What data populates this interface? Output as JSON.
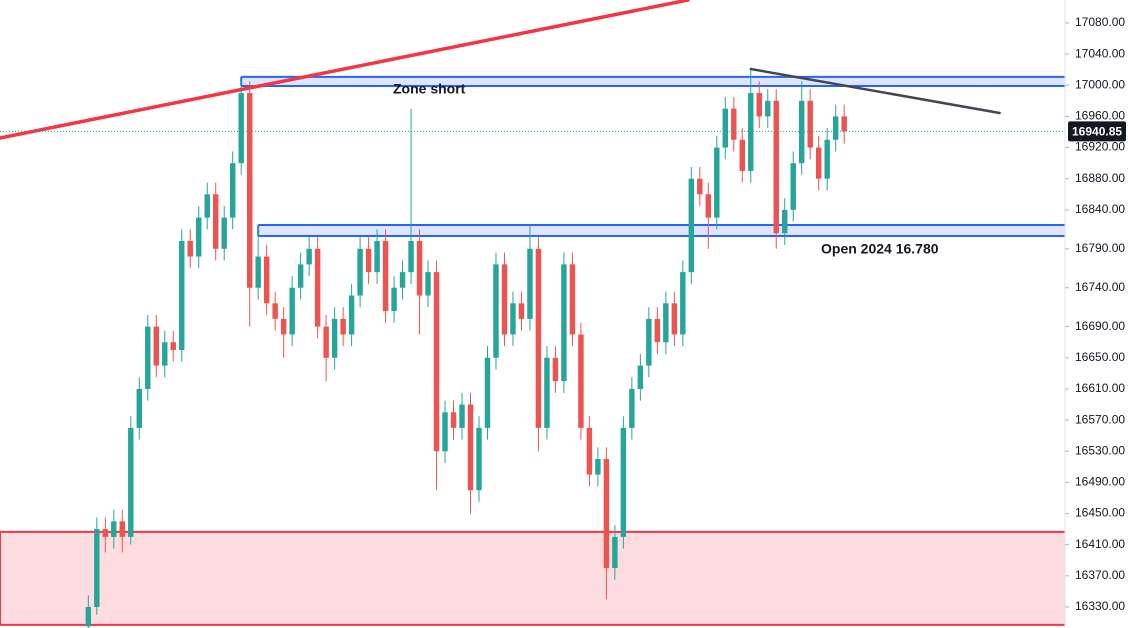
{
  "chart_data": {
    "type": "candlestick",
    "series": [
      {
        "up_color": "#26a69a",
        "down_color": "#ef5350",
        "open": [
          16305,
          16330,
          16430,
          16420,
          16440,
          16420,
          16560,
          16610,
          16690,
          16640,
          16670,
          16660,
          16800,
          16780,
          16830,
          16860,
          16790,
          16830,
          16900,
          16990,
          16740,
          16780,
          16720,
          16700,
          16680,
          16740,
          16770,
          16790,
          16690,
          16650,
          16700,
          16680,
          16730,
          16790,
          16760,
          16800,
          16710,
          16740,
          16760,
          16800,
          16730,
          16760,
          16530,
          16580,
          16560,
          16590,
          16480,
          16560,
          16650,
          16770,
          16680,
          16720,
          16700,
          16790,
          16560,
          16650,
          16620,
          16770,
          16680,
          16560,
          16500,
          16520,
          16380,
          16420,
          16560,
          16610,
          16640,
          16700,
          16670,
          16720,
          16680,
          16760,
          16880,
          16860,
          16830,
          16920,
          16970,
          16930,
          16890,
          16990,
          16960,
          16980,
          16810,
          16840,
          16900,
          16980,
          16920,
          16880,
          16930,
          16960
        ],
        "high": [
          16345,
          16445,
          16445,
          16455,
          16455,
          16575,
          16625,
          16705,
          16705,
          16685,
          16685,
          16815,
          16815,
          16845,
          16875,
          16875,
          16845,
          16915,
          17005,
          17005,
          16820,
          16795,
          16735,
          16715,
          16755,
          16785,
          16805,
          16805,
          16705,
          16715,
          16715,
          16745,
          16805,
          16805,
          16815,
          16815,
          16755,
          16775,
          16970,
          16815,
          16775,
          16775,
          16595,
          16595,
          16605,
          16605,
          16575,
          16665,
          16785,
          16785,
          16735,
          16735,
          16820,
          16805,
          16665,
          16665,
          16785,
          16785,
          16695,
          16575,
          16535,
          16535,
          16435,
          16575,
          16625,
          16655,
          16715,
          16715,
          16735,
          16735,
          16775,
          16895,
          16895,
          16875,
          16935,
          16985,
          16985,
          16945,
          17020,
          17005,
          16995,
          16995,
          16855,
          16915,
          17005,
          16995,
          16935,
          16945,
          16975,
          16975
        ],
        "low": [
          16300,
          16320,
          16400,
          16405,
          16400,
          16410,
          16545,
          16595,
          16625,
          16625,
          16645,
          16645,
          16765,
          16765,
          16815,
          16775,
          16775,
          16815,
          16885,
          16690,
          16725,
          16705,
          16685,
          16650,
          16665,
          16725,
          16755,
          16675,
          16620,
          16635,
          16665,
          16665,
          16715,
          16745,
          16745,
          16695,
          16695,
          16725,
          16745,
          16680,
          16715,
          16480,
          16515,
          16545,
          16545,
          16450,
          16465,
          16545,
          16635,
          16665,
          16665,
          16685,
          16685,
          16530,
          16545,
          16605,
          16605,
          16665,
          16545,
          16485,
          16485,
          16340,
          16365,
          16405,
          16545,
          16595,
          16625,
          16655,
          16655,
          16665,
          16665,
          16745,
          16845,
          16790,
          16815,
          16905,
          16915,
          16875,
          16875,
          16945,
          16945,
          16790,
          16795,
          16825,
          16885,
          16905,
          16865,
          16865,
          16915,
          16925
        ],
        "close": [
          16330,
          16430,
          16420,
          16440,
          16420,
          16560,
          16610,
          16690,
          16640,
          16670,
          16660,
          16800,
          16780,
          16830,
          16860,
          16790,
          16830,
          16900,
          16990,
          16740,
          16780,
          16720,
          16700,
          16680,
          16740,
          16770,
          16790,
          16690,
          16650,
          16700,
          16680,
          16730,
          16790,
          16760,
          16800,
          16710,
          16740,
          16760,
          16800,
          16730,
          16760,
          16530,
          16580,
          16560,
          16590,
          16480,
          16560,
          16650,
          16770,
          16680,
          16720,
          16700,
          16790,
          16560,
          16650,
          16620,
          16770,
          16680,
          16560,
          16500,
          16520,
          16380,
          16420,
          16560,
          16610,
          16640,
          16700,
          16670,
          16720,
          16680,
          16760,
          16880,
          16860,
          16830,
          16920,
          16970,
          16930,
          16890,
          16990,
          16960,
          16980,
          16810,
          16840,
          16900,
          16980,
          16920,
          16880,
          16930,
          16960,
          16940.85
        ]
      }
    ],
    "xlim": [
      -10.4,
      115
    ],
    "ylim": [
      16303,
      17109.5
    ],
    "yticks": [
      {
        "value": 17080,
        "label": "17080.00"
      },
      {
        "value": 17040,
        "label": "17040.00"
      },
      {
        "value": 17000,
        "label": "17000.00"
      },
      {
        "value": 16960,
        "label": "16960.00"
      },
      {
        "value": 16920,
        "label": "16920.00"
      },
      {
        "value": 16880,
        "label": "16880.00"
      },
      {
        "value": 16840,
        "label": "16840.00"
      },
      {
        "value": 16790,
        "label": "16790.00"
      },
      {
        "value": 16740,
        "label": "16740.00"
      },
      {
        "value": 16690,
        "label": "16690.00"
      },
      {
        "value": 16650,
        "label": "16650.00"
      },
      {
        "value": 16610,
        "label": "16610.00"
      },
      {
        "value": 16570,
        "label": "16570.00"
      },
      {
        "value": 16530,
        "label": "16530.00"
      },
      {
        "value": 16490,
        "label": "16490.00"
      },
      {
        "value": 16450,
        "label": "16450.00"
      },
      {
        "value": 16410,
        "label": "16410.00"
      },
      {
        "value": 16370,
        "label": "16370.00"
      },
      {
        "value": 16330,
        "label": "16330.00"
      }
    ],
    "last_price_color": "#131722",
    "zones": [
      {
        "x_start": 18,
        "top": 17010.7,
        "bottom": 16999,
        "label": "Zone short",
        "border": "#2962ff",
        "fill": "rgba(41,98,255,0.16)"
      },
      {
        "x_start": 20,
        "top": 16820.6,
        "bottom": 16806.5,
        "label": "Open 2024 16.780",
        "border": "#2962ff",
        "fill": "rgba(41,98,255,0.16)"
      },
      {
        "x_start": -10.4,
        "top": 16426.4,
        "bottom": 16307,
        "border": "#f23645",
        "fill": "rgba(242,54,69,0.17)"
      }
    ],
    "lines": [
      {
        "x": [
          -10.4,
          70.6
        ],
        "y": [
          16932.3,
          17109.5
        ],
        "color": "#f23645"
      },
      {
        "x": [
          78,
          107.3
        ],
        "y": [
          17020.9,
          16964.4
        ],
        "color": "#434651"
      }
    ]
  }
}
